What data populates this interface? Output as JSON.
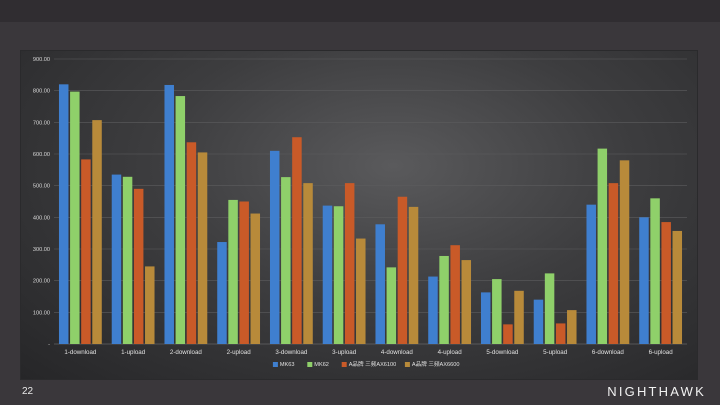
{
  "slide": {
    "number": "22",
    "brand": "NIGHTHAWK"
  },
  "colors": {
    "background": "#3a373b",
    "series": [
      "#3f7fcf",
      "#8fd06a",
      "#c95a28",
      "#b88a3a"
    ]
  },
  "chart_data": {
    "type": "bar",
    "categories": [
      "1-download",
      "1-upload",
      "2-download",
      "2-upload",
      "3-download",
      "3-upload",
      "4-download",
      "4-upload",
      "5-download",
      "5-upload",
      "6-download",
      "6-upload"
    ],
    "series": [
      {
        "name": "MK63",
        "color": "#3f7fcf",
        "values": [
          820,
          535,
          818,
          322,
          610,
          437,
          378,
          213,
          163,
          140,
          440,
          400
        ]
      },
      {
        "name": "MK62",
        "color": "#8fd06a",
        "values": [
          797,
          528,
          783,
          455,
          527,
          435,
          242,
          278,
          205,
          223,
          617,
          460
        ]
      },
      {
        "name": "A品牌 三频AX6100",
        "color": "#c95a28",
        "values": [
          583,
          490,
          637,
          450,
          653,
          508,
          465,
          312,
          62,
          65,
          508,
          385
        ]
      },
      {
        "name": "A品牌 三频AX6600",
        "color": "#b88a3a",
        "values": [
          707,
          245,
          605,
          412,
          508,
          333,
          433,
          265,
          168,
          107,
          580,
          357
        ]
      }
    ],
    "ylim": [
      0,
      900
    ],
    "yticks": [
      "-",
      "100.00",
      "200.00",
      "300.00",
      "400.00",
      "500.00",
      "600.00",
      "700.00",
      "800.00",
      "900.00"
    ],
    "grid": true,
    "legend": "bottom-center",
    "title": "",
    "xlabel": "",
    "ylabel": ""
  }
}
